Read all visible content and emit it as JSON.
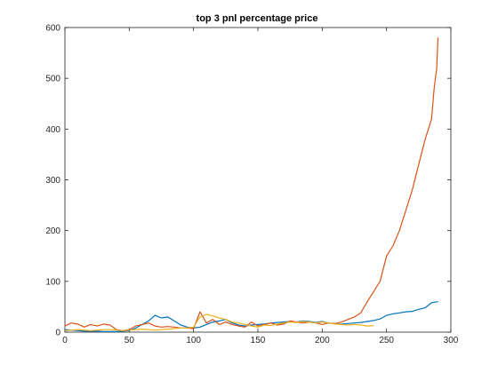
{
  "chart_data": {
    "type": "line",
    "title": "top 3 pnl percentage price",
    "xlabel": "",
    "ylabel": "",
    "xlim": [
      0,
      300
    ],
    "ylim": [
      0,
      600
    ],
    "xticks": [
      0,
      50,
      100,
      150,
      200,
      250,
      300
    ],
    "yticks": [
      0,
      100,
      200,
      300,
      400,
      500,
      600
    ],
    "grid": false,
    "legend": "none",
    "series": [
      {
        "color": "#0072BD",
        "x": [
          0,
          5,
          10,
          15,
          20,
          25,
          30,
          35,
          40,
          45,
          50,
          55,
          60,
          65,
          70,
          75,
          80,
          85,
          90,
          95,
          100,
          105,
          110,
          115,
          120,
          125,
          130,
          135,
          140,
          145,
          150,
          155,
          160,
          165,
          170,
          175,
          180,
          185,
          190,
          195,
          200,
          205,
          210,
          215,
          220,
          225,
          230,
          235,
          240,
          245,
          250,
          255,
          260,
          265,
          270,
          275,
          280,
          285,
          290
        ],
        "values": [
          5,
          4,
          3,
          2,
          2,
          2,
          1,
          1,
          1,
          2,
          3,
          8,
          15,
          22,
          33,
          28,
          30,
          22,
          14,
          10,
          8,
          10,
          15,
          20,
          22,
          25,
          18,
          14,
          12,
          14,
          15,
          16,
          18,
          19,
          20,
          21,
          20,
          22,
          21,
          19,
          21,
          18,
          16,
          16,
          17,
          18,
          19,
          21,
          23,
          26,
          33,
          36,
          38,
          40,
          41,
          45,
          48,
          58,
          60
        ]
      },
      {
        "color": "#D95319",
        "x": [
          0,
          5,
          10,
          15,
          20,
          25,
          30,
          35,
          40,
          45,
          50,
          55,
          60,
          65,
          70,
          75,
          80,
          85,
          90,
          95,
          100,
          105,
          110,
          115,
          120,
          125,
          130,
          135,
          140,
          145,
          150,
          155,
          160,
          165,
          170,
          175,
          180,
          185,
          190,
          195,
          200,
          205,
          210,
          215,
          220,
          225,
          230,
          235,
          240,
          245,
          250,
          255,
          260,
          265,
          270,
          275,
          280,
          285,
          287,
          289,
          290
        ],
        "values": [
          12,
          18,
          16,
          10,
          15,
          12,
          16,
          14,
          5,
          3,
          5,
          12,
          15,
          18,
          12,
          10,
          11,
          10,
          8,
          8,
          7,
          40,
          18,
          25,
          15,
          20,
          15,
          12,
          10,
          20,
          12,
          15,
          18,
          14,
          16,
          22,
          20,
          18,
          20,
          18,
          15,
          18,
          17,
          20,
          25,
          30,
          38,
          60,
          80,
          100,
          150,
          170,
          200,
          240,
          280,
          330,
          380,
          420,
          480,
          520,
          580
        ]
      },
      {
        "color": "#EDB120",
        "x": [
          0,
          5,
          10,
          15,
          20,
          25,
          30,
          35,
          40,
          45,
          50,
          55,
          60,
          65,
          70,
          75,
          80,
          85,
          90,
          95,
          100,
          105,
          110,
          115,
          120,
          125,
          130,
          135,
          140,
          145,
          150,
          155,
          160,
          165,
          170,
          175,
          180,
          185,
          190,
          195,
          200,
          205,
          210,
          215,
          220,
          225,
          230,
          235,
          240
        ],
        "values": [
          3,
          4,
          5,
          4,
          3,
          4,
          5,
          5,
          4,
          3,
          4,
          5,
          6,
          5,
          4,
          5,
          6,
          7,
          8,
          8,
          10,
          30,
          35,
          32,
          28,
          25,
          20,
          18,
          15,
          12,
          10,
          14,
          13,
          16,
          18,
          20,
          19,
          21,
          20,
          18,
          20,
          18,
          16,
          15,
          14,
          15,
          14,
          12,
          13
        ]
      }
    ]
  }
}
